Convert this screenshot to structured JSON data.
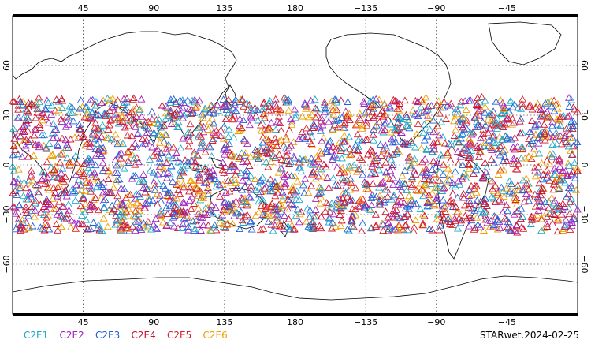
{
  "map": {
    "lon_range": [
      0,
      360
    ],
    "lat_range": [
      -90,
      90
    ],
    "lon_ticks": [
      "45",
      "90",
      "135",
      "180",
      "−135",
      "−90",
      "−45"
    ],
    "lat_ticks_left": [
      "60",
      "30",
      "0",
      "−30",
      "−60"
    ],
    "lat_ticks_right": [
      "60",
      "30",
      "0",
      "−30",
      "−60"
    ],
    "grid": "dotted",
    "coastline": "world outline",
    "marker": "open-triangle",
    "point_band": "approximately 40S to 40N"
  },
  "legend": {
    "items": [
      {
        "label": "C2E1",
        "color": "#1ea9c9"
      },
      {
        "label": "C2E2",
        "color": "#a020c0"
      },
      {
        "label": "C2E3",
        "color": "#1f5fd6"
      },
      {
        "label": "C2E4",
        "color": "#c8102e"
      },
      {
        "label": "C2E5",
        "color": "#d8202a"
      },
      {
        "label": "C2E6",
        "color": "#f0a000"
      }
    ]
  },
  "footer": {
    "product": "STARwet.2024-02-25"
  }
}
